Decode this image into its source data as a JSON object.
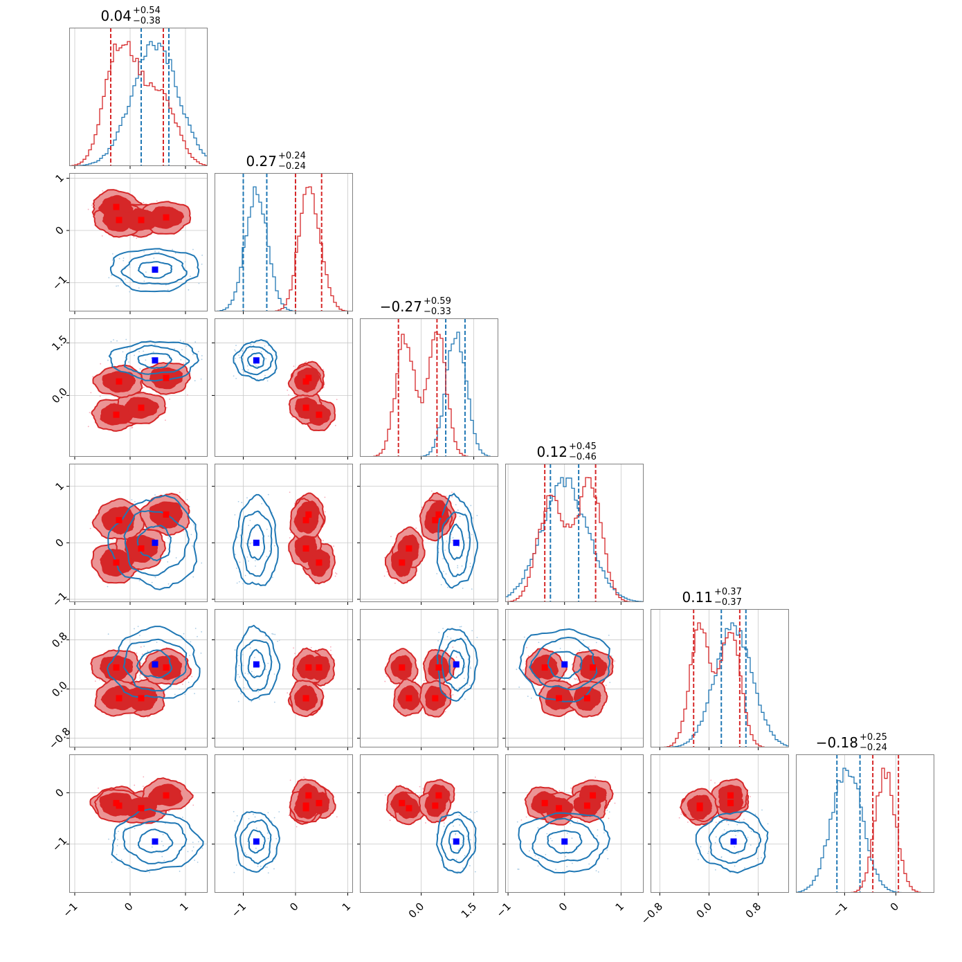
{
  "colors": {
    "blue": "#1f77b4",
    "red": "#d62728",
    "red_fill_dark": "#d62728",
    "red_fill_light": "#eb9495",
    "marker_blue": "#0000ff",
    "marker_red": "#ff0000",
    "grid": "#c8c8c8",
    "frame": "#808080"
  },
  "chart_data": {
    "type": "corner",
    "ndim": 6,
    "titles": [
      {
        "median": "0.04",
        "plus": "+0.54",
        "minus": "−0.38"
      },
      {
        "median": "0.27",
        "plus": "+0.24",
        "minus": "−0.24"
      },
      {
        "median": "−0.27",
        "plus": "+0.59",
        "minus": "−0.33"
      },
      {
        "median": "0.12",
        "plus": "+0.45",
        "minus": "−0.46"
      },
      {
        "median": "0.11",
        "plus": "+0.37",
        "minus": "−0.37"
      },
      {
        "median": "−0.18",
        "plus": "+0.25",
        "minus": "−0.24"
      }
    ],
    "ranges": [
      [
        -1.1,
        1.4
      ],
      [
        -1.55,
        1.1
      ],
      [
        -1.75,
        2.2
      ],
      [
        -1.05,
        1.4
      ],
      [
        -0.95,
        1.3
      ],
      [
        -1.95,
        0.75
      ]
    ],
    "ticks": [
      {
        "values": [
          -1,
          0,
          1
        ],
        "labels": [
          "−1",
          "0",
          "1"
        ]
      },
      {
        "values": [
          -1,
          0,
          1
        ],
        "labels": [
          "−1",
          "0",
          "1"
        ]
      },
      {
        "values": [
          0.0,
          1.5
        ],
        "labels": [
          "0.0",
          "1.5"
        ]
      },
      {
        "values": [
          -1,
          0,
          1
        ],
        "labels": [
          "−1",
          "0",
          "1"
        ]
      },
      {
        "values": [
          -0.8,
          0.0,
          0.8
        ],
        "labels": [
          "−0.8",
          "0.0",
          "0.8"
        ]
      },
      {
        "values": [
          -1,
          0
        ],
        "labels": [
          "−1",
          "0"
        ]
      }
    ],
    "grid": true,
    "series": [
      {
        "name": "",
        "color": "blue",
        "mode": "contour",
        "centers": [
          [
            0.45,
            -0.75,
            1.0,
            0.0,
            0.4,
            -0.95
          ]
        ],
        "sigma": [
          0.33,
          0.17,
          0.23,
          0.33,
          0.24,
          0.24
        ],
        "quantile_lines": [
          [
            0.2,
            0.7
          ],
          [
            -1.0,
            -0.55
          ],
          [
            0.7,
            1.25
          ],
          [
            -0.25,
            0.25
          ],
          [
            0.2,
            0.6
          ],
          [
            -1.15,
            -0.7
          ]
        ],
        "markers": [
          [
            0.45,
            -0.75,
            1.0,
            0.0,
            0.4,
            -0.95
          ]
        ]
      },
      {
        "name": "",
        "color": "red",
        "mode": "filled",
        "centers": [
          [
            -0.25,
            0.45,
            -0.55,
            -0.35,
            0.35,
            -0.2
          ],
          [
            0.2,
            0.2,
            -0.35,
            -0.1,
            -0.15,
            -0.3
          ],
          [
            0.65,
            0.25,
            0.5,
            0.5,
            0.35,
            -0.05
          ],
          [
            -0.2,
            0.2,
            0.4,
            0.4,
            -0.15,
            -0.25
          ]
        ],
        "sigma": [
          0.2,
          0.14,
          0.2,
          0.16,
          0.13,
          0.14
        ],
        "quantile_lines": [
          [
            -0.35,
            0.6
          ],
          [
            0.0,
            0.5
          ],
          [
            -0.65,
            0.45
          ],
          [
            -0.35,
            0.55
          ],
          [
            -0.25,
            0.5
          ],
          [
            -0.45,
            0.05
          ]
        ],
        "markers": [
          [
            -0.25,
            0.45,
            -0.55,
            -0.35,
            0.35,
            -0.2
          ],
          [
            0.2,
            0.2,
            -0.35,
            -0.1,
            -0.15,
            -0.3
          ],
          [
            0.65,
            0.25,
            0.5,
            0.5,
            0.35,
            -0.05
          ],
          [
            -0.2,
            0.2,
            0.4,
            0.4,
            -0.15,
            -0.25
          ]
        ]
      }
    ]
  }
}
